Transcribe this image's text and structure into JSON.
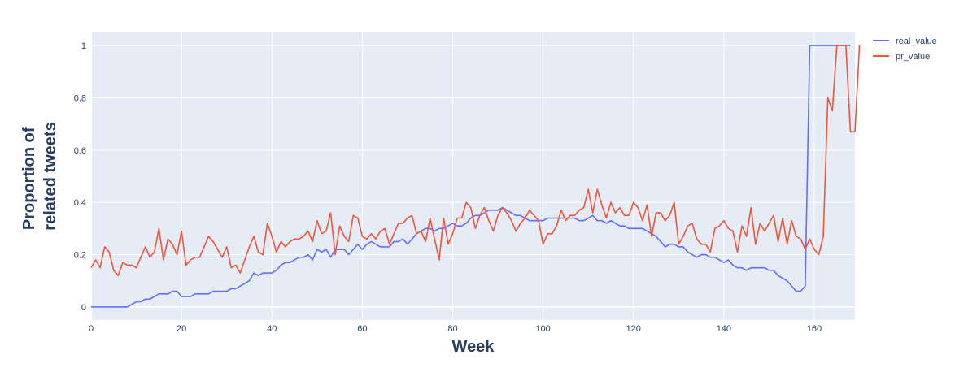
{
  "chart_data": {
    "type": "line",
    "title": "",
    "xlabel": "Week",
    "ylabel_lines": [
      "Proportion of",
      "related tweets"
    ],
    "xlim": [
      0,
      169
    ],
    "ylim": [
      -0.05,
      1.05
    ],
    "x_ticks": [
      0,
      20,
      40,
      60,
      80,
      100,
      120,
      140,
      160
    ],
    "y_ticks": [
      0,
      0.2,
      0.4,
      0.6,
      0.8,
      1
    ],
    "y_tick_labels": [
      "0",
      "0.2",
      "0.4",
      "0.6",
      "0.8",
      "1"
    ],
    "grid": true,
    "legend_position": "top-right",
    "background_color": "#e5ecf6",
    "series": [
      {
        "name": "real_value",
        "color": "#636efa",
        "values": [
          0,
          0,
          0,
          0,
          0,
          0,
          0,
          0,
          0,
          0.01,
          0.02,
          0.02,
          0.03,
          0.03,
          0.04,
          0.05,
          0.05,
          0.05,
          0.06,
          0.06,
          0.04,
          0.04,
          0.04,
          0.05,
          0.05,
          0.05,
          0.05,
          0.06,
          0.06,
          0.06,
          0.06,
          0.07,
          0.07,
          0.08,
          0.09,
          0.1,
          0.13,
          0.12,
          0.13,
          0.13,
          0.13,
          0.14,
          0.16,
          0.17,
          0.17,
          0.18,
          0.19,
          0.19,
          0.2,
          0.18,
          0.22,
          0.21,
          0.22,
          0.19,
          0.22,
          0.22,
          0.22,
          0.2,
          0.22,
          0.24,
          0.22,
          0.24,
          0.25,
          0.24,
          0.23,
          0.23,
          0.23,
          0.25,
          0.25,
          0.26,
          0.24,
          0.26,
          0.28,
          0.29,
          0.3,
          0.3,
          0.29,
          0.3,
          0.3,
          0.31,
          0.32,
          0.31,
          0.31,
          0.32,
          0.34,
          0.35,
          0.35,
          0.36,
          0.37,
          0.37,
          0.37,
          0.38,
          0.37,
          0.36,
          0.35,
          0.35,
          0.34,
          0.33,
          0.33,
          0.33,
          0.33,
          0.34,
          0.34,
          0.34,
          0.34,
          0.34,
          0.34,
          0.34,
          0.33,
          0.33,
          0.34,
          0.35,
          0.33,
          0.33,
          0.32,
          0.33,
          0.32,
          0.31,
          0.31,
          0.3,
          0.3,
          0.3,
          0.3,
          0.29,
          0.28,
          0.27,
          0.25,
          0.23,
          0.24,
          0.24,
          0.23,
          0.23,
          0.21,
          0.2,
          0.19,
          0.2,
          0.2,
          0.19,
          0.19,
          0.18,
          0.17,
          0.18,
          0.16,
          0.15,
          0.15,
          0.14,
          0.15,
          0.15,
          0.15,
          0.15,
          0.14,
          0.14,
          0.12,
          0.11,
          0.1,
          0.08,
          0.06,
          0.06,
          0.08,
          1,
          1,
          1,
          1,
          1,
          1,
          1,
          1,
          1,
          1
        ]
      },
      {
        "name": "pr_value",
        "color": "#ef553b",
        "values": [
          0.15,
          0.18,
          0.15,
          0.23,
          0.21,
          0.14,
          0.12,
          0.17,
          0.16,
          0.16,
          0.15,
          0.19,
          0.23,
          0.19,
          0.21,
          0.3,
          0.18,
          0.26,
          0.24,
          0.2,
          0.29,
          0.16,
          0.18,
          0.19,
          0.19,
          0.23,
          0.27,
          0.25,
          0.22,
          0.19,
          0.23,
          0.15,
          0.16,
          0.13,
          0.18,
          0.23,
          0.27,
          0.21,
          0.2,
          0.32,
          0.27,
          0.21,
          0.25,
          0.23,
          0.25,
          0.26,
          0.26,
          0.27,
          0.29,
          0.25,
          0.33,
          0.28,
          0.29,
          0.36,
          0.2,
          0.31,
          0.27,
          0.25,
          0.35,
          0.34,
          0.27,
          0.26,
          0.28,
          0.26,
          0.29,
          0.3,
          0.24,
          0.28,
          0.32,
          0.32,
          0.34,
          0.35,
          0.28,
          0.29,
          0.25,
          0.34,
          0.26,
          0.18,
          0.34,
          0.24,
          0.28,
          0.34,
          0.34,
          0.4,
          0.38,
          0.3,
          0.35,
          0.38,
          0.33,
          0.29,
          0.35,
          0.38,
          0.36,
          0.33,
          0.29,
          0.32,
          0.34,
          0.37,
          0.35,
          0.33,
          0.24,
          0.28,
          0.28,
          0.31,
          0.37,
          0.33,
          0.35,
          0.35,
          0.37,
          0.38,
          0.45,
          0.36,
          0.45,
          0.39,
          0.34,
          0.4,
          0.36,
          0.38,
          0.35,
          0.35,
          0.4,
          0.38,
          0.33,
          0.39,
          0.27,
          0.36,
          0.36,
          0.33,
          0.35,
          0.4,
          0.24,
          0.27,
          0.31,
          0.32,
          0.26,
          0.24,
          0.24,
          0.21,
          0.3,
          0.31,
          0.33,
          0.3,
          0.29,
          0.21,
          0.31,
          0.27,
          0.38,
          0.24,
          0.32,
          0.29,
          0.32,
          0.35,
          0.25,
          0.34,
          0.24,
          0.33,
          0.27,
          0.26,
          0.22,
          0.26,
          0.22,
          0.2,
          0.27,
          0.8,
          0.75,
          1,
          1,
          1,
          0.67,
          0.67,
          1
        ]
      }
    ]
  }
}
